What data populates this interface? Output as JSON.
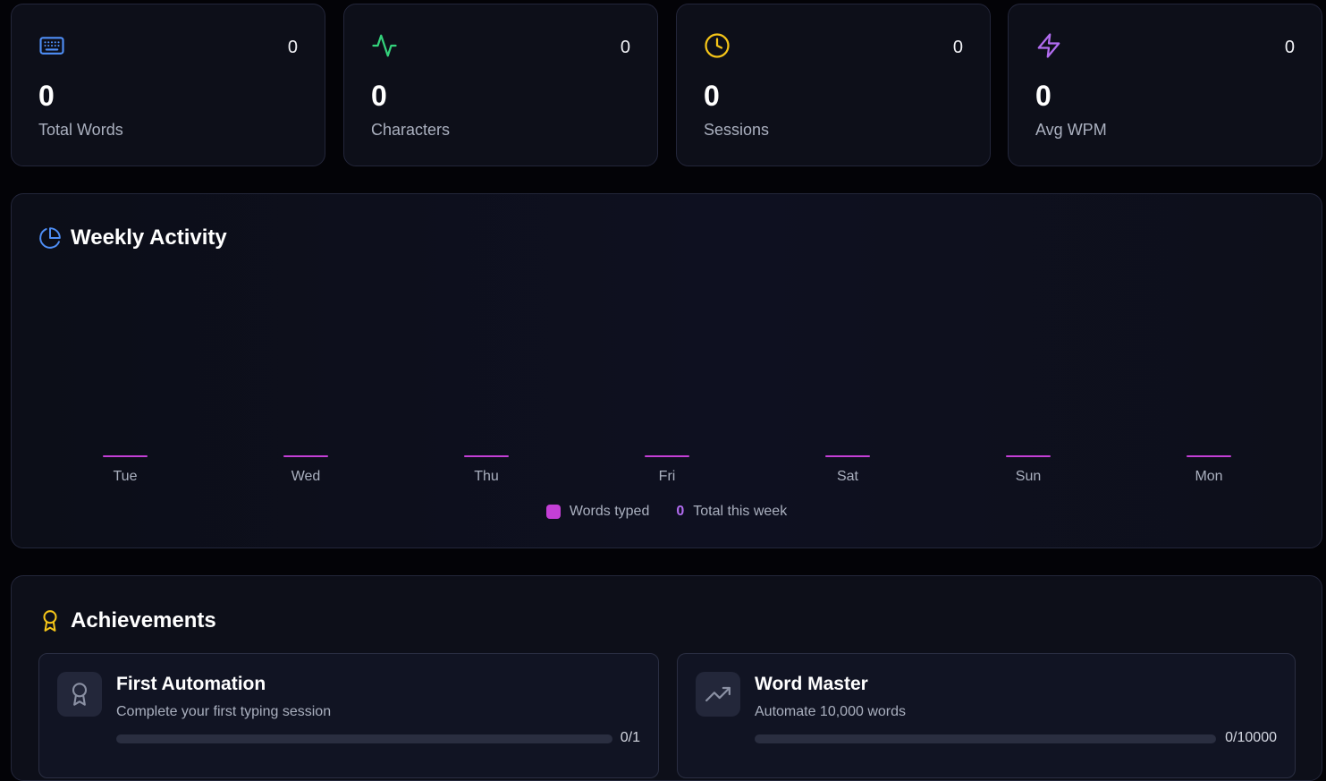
{
  "stats": [
    {
      "icon": "keyboard-icon",
      "badge": "0",
      "value": "0",
      "label": "Total Words",
      "color": "#4f8ff7"
    },
    {
      "icon": "activity-icon",
      "badge": "0",
      "value": "0",
      "label": "Characters",
      "color": "#34d27b"
    },
    {
      "icon": "clock-icon",
      "badge": "0",
      "value": "0",
      "label": "Sessions",
      "color": "#f5c518"
    },
    {
      "icon": "zap-icon",
      "badge": "0",
      "value": "0",
      "label": "Avg WPM",
      "color": "#b26cf0"
    }
  ],
  "weekly_activity": {
    "title": "Weekly Activity",
    "icon": "pie-chart-icon",
    "legend_label": "Words typed",
    "total_value": "0",
    "total_label": "Total this week"
  },
  "chart_data": {
    "type": "bar",
    "categories": [
      "Tue",
      "Wed",
      "Thu",
      "Fri",
      "Sat",
      "Sun",
      "Mon"
    ],
    "series": [
      {
        "name": "Words typed",
        "values": [
          0,
          0,
          0,
          0,
          0,
          0,
          0
        ]
      }
    ],
    "color": "#c43fd6",
    "grid": false,
    "legend": "bottom-center"
  },
  "achievements": {
    "title": "Achievements",
    "icon": "award-icon",
    "items": [
      {
        "icon": "award-icon",
        "title": "First Automation",
        "description": "Complete your first typing session",
        "progress_text": "0/1",
        "progress": 0
      },
      {
        "icon": "trending-up-icon",
        "title": "Word Master",
        "description": "Automate 10,000 words",
        "progress_text": "0/10000",
        "progress": 0
      }
    ]
  },
  "colors": {
    "background": "#030307",
    "card": "#0d0f19",
    "accent_pink": "#c43fd6",
    "accent_purple": "#b26cf0",
    "achievement_gold": "#f5c518"
  }
}
